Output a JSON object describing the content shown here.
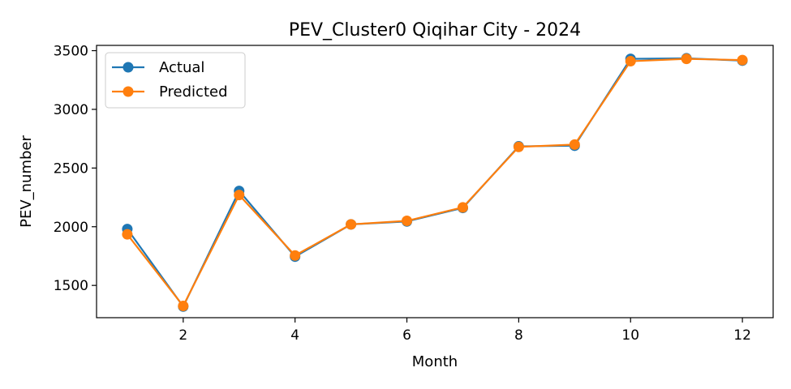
{
  "chart_data": {
    "type": "line",
    "title": "PEV_Cluster0 Qiqihar City - 2024",
    "xlabel": "Month",
    "ylabel": "PEV_number",
    "x": [
      1,
      2,
      3,
      4,
      5,
      6,
      7,
      8,
      9,
      10,
      11,
      12
    ],
    "xticks": [
      2,
      4,
      6,
      8,
      10,
      12
    ],
    "yticks": [
      1500,
      2000,
      2500,
      3000,
      3500
    ],
    "xlim": [
      0.45,
      12.55
    ],
    "ylim": [
      1225,
      3545
    ],
    "grid": false,
    "legend_position": "upper-left",
    "series": [
      {
        "name": "Actual",
        "color": "#1f77b4",
        "values": [
          1980,
          1320,
          2305,
          1745,
          2020,
          2045,
          2160,
          2685,
          2690,
          3430,
          3435,
          3415
        ]
      },
      {
        "name": "Predicted",
        "color": "#ff7f0e",
        "values": [
          1935,
          1325,
          2270,
          1755,
          2020,
          2050,
          2165,
          2680,
          2700,
          3410,
          3430,
          3420
        ]
      }
    ]
  }
}
